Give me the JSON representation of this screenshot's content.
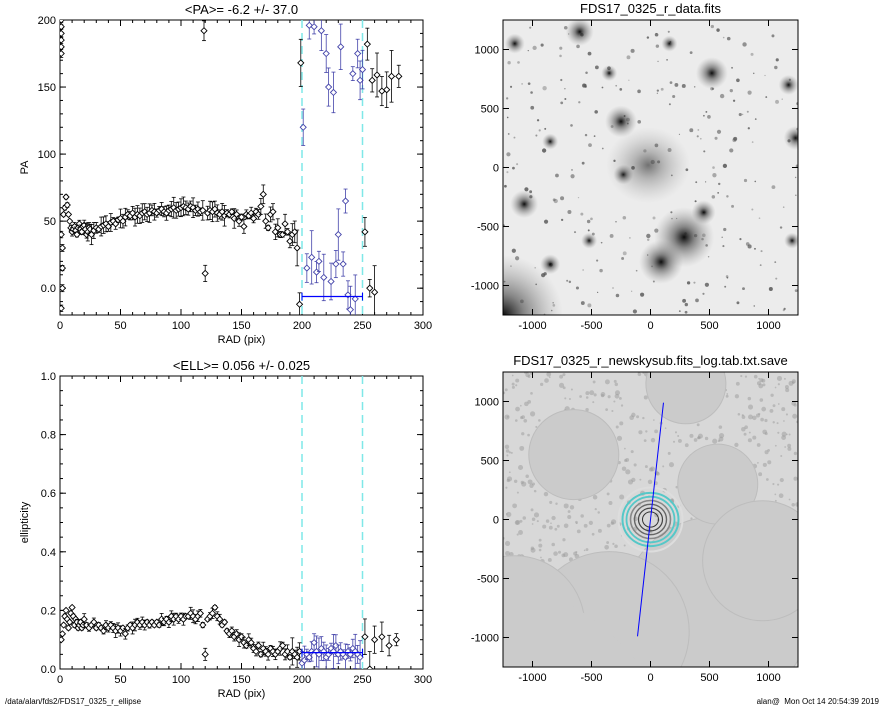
{
  "footer": {
    "path": "/data/alan/fds2/FDS17_0325_r_ellipse",
    "user": "alan@",
    "timestamp": "Mon Oct 14 20:54:39 2019"
  },
  "colors": {
    "markers": "#000000",
    "mean_line": "#0000ff",
    "range_lines": "#7fe8e8",
    "inrange_markers": "#4444aa"
  },
  "chart_data": [
    {
      "type": "scatter",
      "title": "<PA>=  -6.2 +/-  37.0",
      "xlabel": "RAD (pix)",
      "ylabel": "PA",
      "xlim": [
        0,
        300
      ],
      "ylim": [
        -20,
        200
      ],
      "xticks": [
        0,
        50,
        100,
        150,
        200,
        250,
        300
      ],
      "yticks": [
        0,
        50,
        100,
        150,
        200
      ],
      "mean": -6.2,
      "sigma": 37.0,
      "fit_range": [
        200,
        250
      ],
      "points": [
        [
          1,
          200
        ],
        [
          1,
          195
        ],
        [
          1,
          190
        ],
        [
          1,
          185
        ],
        [
          1,
          180
        ],
        [
          1,
          175
        ],
        [
          1,
          40
        ],
        [
          2,
          30
        ],
        [
          2,
          15
        ],
        [
          2,
          0
        ],
        [
          1,
          -15
        ],
        [
          3,
          55
        ],
        [
          4,
          60
        ],
        [
          5,
          68
        ],
        [
          6,
          62
        ],
        [
          7,
          55
        ],
        [
          8,
          50
        ],
        [
          9,
          45
        ],
        [
          10,
          42
        ],
        [
          11,
          44
        ],
        [
          12,
          46
        ],
        [
          13,
          43
        ],
        [
          14,
          40
        ],
        [
          15,
          45
        ],
        [
          16,
          48
        ],
        [
          17,
          44
        ],
        [
          18,
          42
        ],
        [
          19,
          46
        ],
        [
          20,
          47
        ],
        [
          21,
          44
        ],
        [
          22,
          40
        ],
        [
          23,
          42
        ],
        [
          24,
          45
        ],
        [
          25,
          44
        ],
        [
          26,
          40
        ],
        [
          28,
          43
        ],
        [
          30,
          45
        ],
        [
          32,
          44
        ],
        [
          34,
          46
        ],
        [
          36,
          47
        ],
        [
          38,
          48
        ],
        [
          40,
          46
        ],
        [
          42,
          49
        ],
        [
          44,
          50
        ],
        [
          46,
          48
        ],
        [
          48,
          51
        ],
        [
          50,
          52
        ],
        [
          52,
          50
        ],
        [
          54,
          53
        ],
        [
          56,
          55
        ],
        [
          58,
          54
        ],
        [
          60,
          56
        ],
        [
          62,
          53
        ],
        [
          64,
          55
        ],
        [
          66,
          54
        ],
        [
          68,
          56
        ],
        [
          70,
          57
        ],
        [
          72,
          55
        ],
        [
          74,
          56
        ],
        [
          76,
          58
        ],
        [
          78,
          57
        ],
        [
          80,
          56
        ],
        [
          82,
          58
        ],
        [
          84,
          59
        ],
        [
          86,
          57
        ],
        [
          88,
          56
        ],
        [
          90,
          58
        ],
        [
          92,
          59
        ],
        [
          94,
          60
        ],
        [
          96,
          58
        ],
        [
          98,
          59
        ],
        [
          100,
          60
        ],
        [
          102,
          61
        ],
        [
          104,
          60
        ],
        [
          106,
          59
        ],
        [
          108,
          61
        ],
        [
          110,
          60
        ],
        [
          112,
          58
        ],
        [
          114,
          59
        ],
        [
          116,
          57
        ],
        [
          118,
          58
        ],
        [
          119,
          192
        ],
        [
          120,
          11
        ],
        [
          122,
          56
        ],
        [
          124,
          58
        ],
        [
          126,
          57
        ],
        [
          128,
          59
        ],
        [
          130,
          56
        ],
        [
          132,
          55
        ],
        [
          134,
          57
        ],
        [
          136,
          54
        ],
        [
          138,
          56
        ],
        [
          140,
          55
        ],
        [
          142,
          57
        ],
        [
          144,
          52
        ],
        [
          146,
          55
        ],
        [
          148,
          50
        ],
        [
          150,
          53
        ],
        [
          152,
          46
        ],
        [
          154,
          55
        ],
        [
          156,
          54
        ],
        [
          158,
          56
        ],
        [
          160,
          52
        ],
        [
          162,
          57
        ],
        [
          164,
          55
        ],
        [
          166,
          61
        ],
        [
          168,
          70
        ],
        [
          170,
          50
        ],
        [
          172,
          45
        ],
        [
          174,
          55
        ],
        [
          176,
          57
        ],
        [
          178,
          42
        ],
        [
          180,
          45
        ],
        [
          182,
          40
        ],
        [
          184,
          40
        ],
        [
          186,
          48
        ],
        [
          188,
          42
        ],
        [
          190,
          35
        ],
        [
          192,
          40
        ],
        [
          194,
          42
        ],
        [
          196,
          30
        ],
        [
          198,
          -12
        ],
        [
          199,
          168
        ],
        [
          201,
          120
        ],
        [
          204,
          15
        ],
        [
          206,
          196
        ],
        [
          208,
          23
        ],
        [
          210,
          195
        ],
        [
          212,
          12
        ],
        [
          214,
          20
        ],
        [
          216,
          192
        ],
        [
          218,
          8
        ],
        [
          220,
          175
        ],
        [
          222,
          150
        ],
        [
          224,
          5
        ],
        [
          226,
          146
        ],
        [
          228,
          18
        ],
        [
          230,
          40
        ],
        [
          232,
          180
        ],
        [
          234,
          18
        ],
        [
          236,
          65
        ],
        [
          238,
          -5
        ],
        [
          240,
          -16
        ],
        [
          242,
          160
        ],
        [
          244,
          -8
        ],
        [
          246,
          175
        ],
        [
          248,
          155
        ],
        [
          250,
          163
        ],
        [
          252,
          42
        ],
        [
          254,
          182
        ],
        [
          256,
          0
        ],
        [
          258,
          155
        ],
        [
          260,
          -3
        ],
        [
          262,
          159
        ],
        [
          266,
          147
        ],
        [
          270,
          148
        ],
        [
          274,
          158
        ],
        [
          280,
          158
        ]
      ]
    },
    {
      "type": "image",
      "title": "FDS17_0325_r_data.fits",
      "xlim": [
        -1250,
        1250
      ],
      "ylim": [
        -1250,
        1250
      ],
      "xticks": [
        -1000,
        -500,
        0,
        500,
        1000
      ],
      "yticks": [
        -1000,
        -500,
        0,
        500,
        1000
      ]
    },
    {
      "type": "scatter",
      "title": "<ELL>= 0.056 +/-  0.025",
      "xlabel": "RAD (pix)",
      "ylabel": "ellipticity",
      "xlim": [
        0,
        300
      ],
      "ylim": [
        0,
        1.0
      ],
      "xticks": [
        0,
        50,
        100,
        150,
        200,
        250,
        300
      ],
      "yticks": [
        0.0,
        0.2,
        0.4,
        0.6,
        0.8,
        1.0
      ],
      "mean": 0.056,
      "sigma": 0.025,
      "fit_range": [
        200,
        250
      ],
      "points": [
        [
          1,
          0.1
        ],
        [
          2,
          0.12
        ],
        [
          3,
          0.15
        ],
        [
          4,
          0.18
        ],
        [
          5,
          0.2
        ],
        [
          6,
          0.17
        ],
        [
          7,
          0.14
        ],
        [
          8,
          0.16
        ],
        [
          9,
          0.19
        ],
        [
          10,
          0.21
        ],
        [
          11,
          0.18
        ],
        [
          12,
          0.15
        ],
        [
          13,
          0.17
        ],
        [
          14,
          0.16
        ],
        [
          15,
          0.14
        ],
        [
          16,
          0.15
        ],
        [
          17,
          0.16
        ],
        [
          18,
          0.14
        ],
        [
          19,
          0.15
        ],
        [
          20,
          0.17
        ],
        [
          22,
          0.15
        ],
        [
          24,
          0.14
        ],
        [
          26,
          0.15
        ],
        [
          28,
          0.16
        ],
        [
          30,
          0.14
        ],
        [
          32,
          0.15
        ],
        [
          34,
          0.14
        ],
        [
          36,
          0.13
        ],
        [
          38,
          0.15
        ],
        [
          40,
          0.14
        ],
        [
          42,
          0.15
        ],
        [
          44,
          0.14
        ],
        [
          46,
          0.13
        ],
        [
          48,
          0.14
        ],
        [
          50,
          0.13
        ],
        [
          52,
          0.14
        ],
        [
          54,
          0.12
        ],
        [
          56,
          0.14
        ],
        [
          58,
          0.15
        ],
        [
          60,
          0.14
        ],
        [
          62,
          0.15
        ],
        [
          64,
          0.16
        ],
        [
          66,
          0.15
        ],
        [
          68,
          0.16
        ],
        [
          70,
          0.15
        ],
        [
          72,
          0.16
        ],
        [
          74,
          0.15
        ],
        [
          76,
          0.16
        ],
        [
          78,
          0.15
        ],
        [
          80,
          0.16
        ],
        [
          82,
          0.15
        ],
        [
          84,
          0.17
        ],
        [
          86,
          0.16
        ],
        [
          88,
          0.17
        ],
        [
          90,
          0.16
        ],
        [
          92,
          0.18
        ],
        [
          94,
          0.17
        ],
        [
          96,
          0.18
        ],
        [
          98,
          0.17
        ],
        [
          100,
          0.18
        ],
        [
          102,
          0.17
        ],
        [
          104,
          0.18
        ],
        [
          106,
          0.18
        ],
        [
          108,
          0.19
        ],
        [
          110,
          0.18
        ],
        [
          112,
          0.17
        ],
        [
          114,
          0.18
        ],
        [
          116,
          0.19
        ],
        [
          118,
          0.15
        ],
        [
          120,
          0.05
        ],
        [
          122,
          0.17
        ],
        [
          124,
          0.18
        ],
        [
          126,
          0.19
        ],
        [
          128,
          0.21
        ],
        [
          130,
          0.18
        ],
        [
          132,
          0.17
        ],
        [
          134,
          0.15
        ],
        [
          136,
          0.16
        ],
        [
          138,
          0.13
        ],
        [
          140,
          0.12
        ],
        [
          142,
          0.13
        ],
        [
          144,
          0.11
        ],
        [
          146,
          0.12
        ],
        [
          148,
          0.1
        ],
        [
          150,
          0.11
        ],
        [
          152,
          0.09
        ],
        [
          154,
          0.08
        ],
        [
          156,
          0.1
        ],
        [
          158,
          0.09
        ],
        [
          160,
          0.07
        ],
        [
          162,
          0.06
        ],
        [
          164,
          0.08
        ],
        [
          166,
          0.05
        ],
        [
          168,
          0.07
        ],
        [
          170,
          0.06
        ],
        [
          172,
          0.05
        ],
        [
          174,
          0.07
        ],
        [
          176,
          0.06
        ],
        [
          178,
          0.05
        ],
        [
          180,
          0.06
        ],
        [
          182,
          0.07
        ],
        [
          184,
          0.08
        ],
        [
          186,
          0.05
        ],
        [
          188,
          0.06
        ],
        [
          190,
          0.04
        ],
        [
          192,
          0.06
        ],
        [
          194,
          0.05
        ],
        [
          196,
          0.04
        ],
        [
          198,
          0.06
        ],
        [
          200,
          0.02
        ],
        [
          202,
          0.03
        ],
        [
          204,
          0.05
        ],
        [
          206,
          0.04
        ],
        [
          208,
          0.06
        ],
        [
          210,
          0.09
        ],
        [
          212,
          0.06
        ],
        [
          214,
          0.05
        ],
        [
          216,
          0.07
        ],
        [
          218,
          0.06
        ],
        [
          220,
          0.04
        ],
        [
          222,
          0.05
        ],
        [
          224,
          0.07
        ],
        [
          226,
          0.06
        ],
        [
          228,
          0.08
        ],
        [
          230,
          0.05
        ],
        [
          232,
          0.06
        ],
        [
          234,
          0.05
        ],
        [
          236,
          0.04
        ],
        [
          238,
          0.06
        ],
        [
          240,
          0.05
        ],
        [
          242,
          0.07
        ],
        [
          244,
          0.06
        ],
        [
          246,
          0.05
        ],
        [
          248,
          0.04
        ],
        [
          252,
          0.11
        ],
        [
          256,
          0.0
        ],
        [
          260,
          0.1
        ],
        [
          266,
          0.11
        ],
        [
          272,
          0.08
        ],
        [
          278,
          0.1
        ]
      ]
    },
    {
      "type": "image",
      "title": "FDS17_0325_r_newskysub.fits_log.tab.txt.save",
      "xlim": [
        -1250,
        1250
      ],
      "ylim": [
        -1250,
        1250
      ],
      "xticks": [
        -1000,
        -500,
        0,
        500,
        1000
      ],
      "yticks": [
        -1000,
        -500,
        0,
        500,
        1000
      ]
    }
  ]
}
